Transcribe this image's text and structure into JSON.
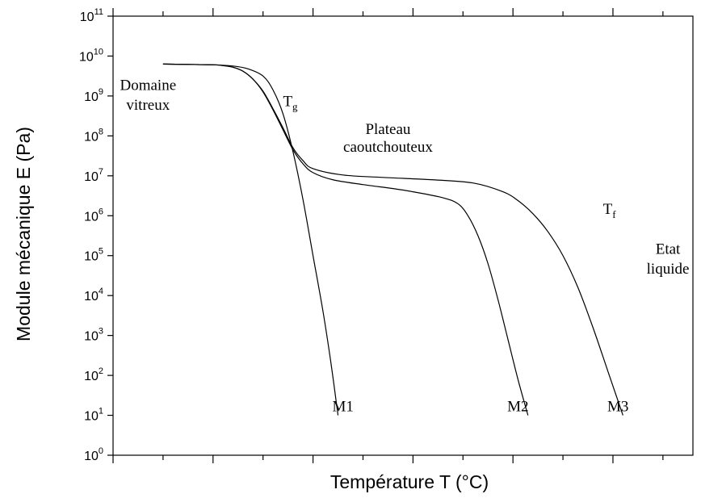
{
  "chart_data": {
    "type": "line",
    "xlabel": "Température T (°C)",
    "ylabel": "Module mécanique E (Pa)",
    "yscale": "log",
    "ylim_exp": [
      0,
      11
    ],
    "y_tick_labels": [
      {
        "base": "10",
        "exp": "0"
      },
      {
        "base": "10",
        "exp": "1"
      },
      {
        "base": "10",
        "exp": "2"
      },
      {
        "base": "10",
        "exp": "3"
      },
      {
        "base": "10",
        "exp": "4"
      },
      {
        "base": "10",
        "exp": "5"
      },
      {
        "base": "10",
        "exp": "6"
      },
      {
        "base": "10",
        "exp": "7"
      },
      {
        "base": "10",
        "exp": "8"
      },
      {
        "base": "10",
        "exp": "9"
      },
      {
        "base": "10",
        "exp": "10"
      },
      {
        "base": "10",
        "exp": "11"
      }
    ],
    "x_tick_labels_shown": false,
    "grid": false,
    "series": [
      {
        "name": "M1",
        "points": [
          [
            0.5,
            9.8
          ],
          [
            1.0,
            9.78
          ],
          [
            1.2,
            9.75
          ],
          [
            1.35,
            9.68
          ],
          [
            1.5,
            9.5
          ],
          [
            1.6,
            9.15
          ],
          [
            1.7,
            8.55
          ],
          [
            1.8,
            7.6
          ],
          [
            1.9,
            6.4
          ],
          [
            2.0,
            5.0
          ],
          [
            2.1,
            3.6
          ],
          [
            2.18,
            2.3
          ],
          [
            2.25,
            1.0
          ]
        ]
      },
      {
        "name": "M2",
        "points": [
          [
            0.5,
            9.8
          ],
          [
            1.0,
            9.78
          ],
          [
            1.1,
            9.76
          ],
          [
            1.2,
            9.72
          ],
          [
            1.3,
            9.62
          ],
          [
            1.4,
            9.42
          ],
          [
            1.5,
            9.1
          ],
          [
            1.6,
            8.65
          ],
          [
            1.7,
            8.15
          ],
          [
            1.8,
            7.65
          ],
          [
            1.9,
            7.3
          ],
          [
            2.0,
            7.08
          ],
          [
            2.2,
            6.9
          ],
          [
            2.5,
            6.78
          ],
          [
            2.8,
            6.68
          ],
          [
            3.0,
            6.6
          ],
          [
            3.3,
            6.45
          ],
          [
            3.45,
            6.3
          ],
          [
            3.55,
            6.0
          ],
          [
            3.65,
            5.5
          ],
          [
            3.75,
            4.8
          ],
          [
            3.85,
            3.9
          ],
          [
            3.95,
            2.9
          ],
          [
            4.05,
            1.9
          ],
          [
            4.15,
            1.0
          ]
        ]
      },
      {
        "name": "M3",
        "points": [
          [
            0.5,
            9.8
          ],
          [
            1.0,
            9.78
          ],
          [
            1.1,
            9.76
          ],
          [
            1.2,
            9.72
          ],
          [
            1.3,
            9.62
          ],
          [
            1.4,
            9.42
          ],
          [
            1.5,
            9.12
          ],
          [
            1.6,
            8.68
          ],
          [
            1.7,
            8.2
          ],
          [
            1.8,
            7.7
          ],
          [
            1.9,
            7.38
          ],
          [
            2.0,
            7.18
          ],
          [
            2.3,
            7.02
          ],
          [
            2.7,
            6.96
          ],
          [
            3.2,
            6.9
          ],
          [
            3.6,
            6.82
          ],
          [
            3.9,
            6.6
          ],
          [
            4.05,
            6.38
          ],
          [
            4.2,
            6.05
          ],
          [
            4.35,
            5.6
          ],
          [
            4.5,
            5.0
          ],
          [
            4.65,
            4.2
          ],
          [
            4.8,
            3.2
          ],
          [
            4.95,
            2.1
          ],
          [
            5.1,
            1.0
          ]
        ]
      }
    ],
    "annotations": [
      {
        "text": "Domaine",
        "x": 0.35,
        "y": 9.15,
        "name": "annotation-domaine"
      },
      {
        "text": "vitreux",
        "x": 0.35,
        "y": 8.65,
        "name": "annotation-vitreux"
      },
      {
        "text": "T",
        "sub": "g",
        "x": 1.7,
        "y": 8.75,
        "name": "annotation-tg"
      },
      {
        "text": "Plateau",
        "x": 2.75,
        "y": 8.05,
        "name": "annotation-plateau"
      },
      {
        "text": "caoutchouteux",
        "x": 2.75,
        "y": 7.6,
        "name": "annotation-caoutchouteux"
      },
      {
        "text": "T",
        "sub": "f",
        "x": 4.9,
        "y": 6.05,
        "name": "annotation-tf"
      },
      {
        "text": "Etat",
        "x": 5.55,
        "y": 5.05,
        "name": "annotation-etat"
      },
      {
        "text": "liquide",
        "x": 5.55,
        "y": 4.55,
        "name": "annotation-liquide"
      },
      {
        "text": "M1",
        "x": 2.3,
        "y": 1.1,
        "name": "annotation-m1"
      },
      {
        "text": "M2",
        "x": 4.05,
        "y": 1.1,
        "name": "annotation-m2"
      },
      {
        "text": "M3",
        "x": 5.05,
        "y": 1.1,
        "name": "annotation-m3"
      }
    ]
  }
}
